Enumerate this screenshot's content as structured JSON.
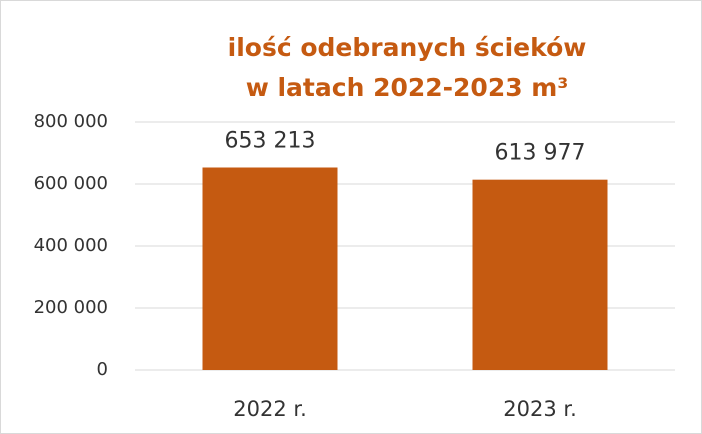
{
  "chart_data": {
    "type": "bar",
    "title": [
      "ilość odebranych ścieków",
      "w latach 2022-2023 m³"
    ],
    "categories": [
      "2022 r.",
      "2023 r."
    ],
    "values": [
      653213,
      613977
    ],
    "value_labels": [
      "653 213",
      "613 977"
    ],
    "color": "#c55a11",
    "ylim": [
      0,
      800000
    ],
    "yticks": [
      0,
      {
        "value": 200000,
        "label": "200 000"
      },
      {
        "value": 400000,
        "label": "400 000"
      },
      {
        "value": 600000,
        "label": "600 000"
      },
      {
        "value": 800000,
        "label": "800 000"
      }
    ],
    "grid": true
  }
}
